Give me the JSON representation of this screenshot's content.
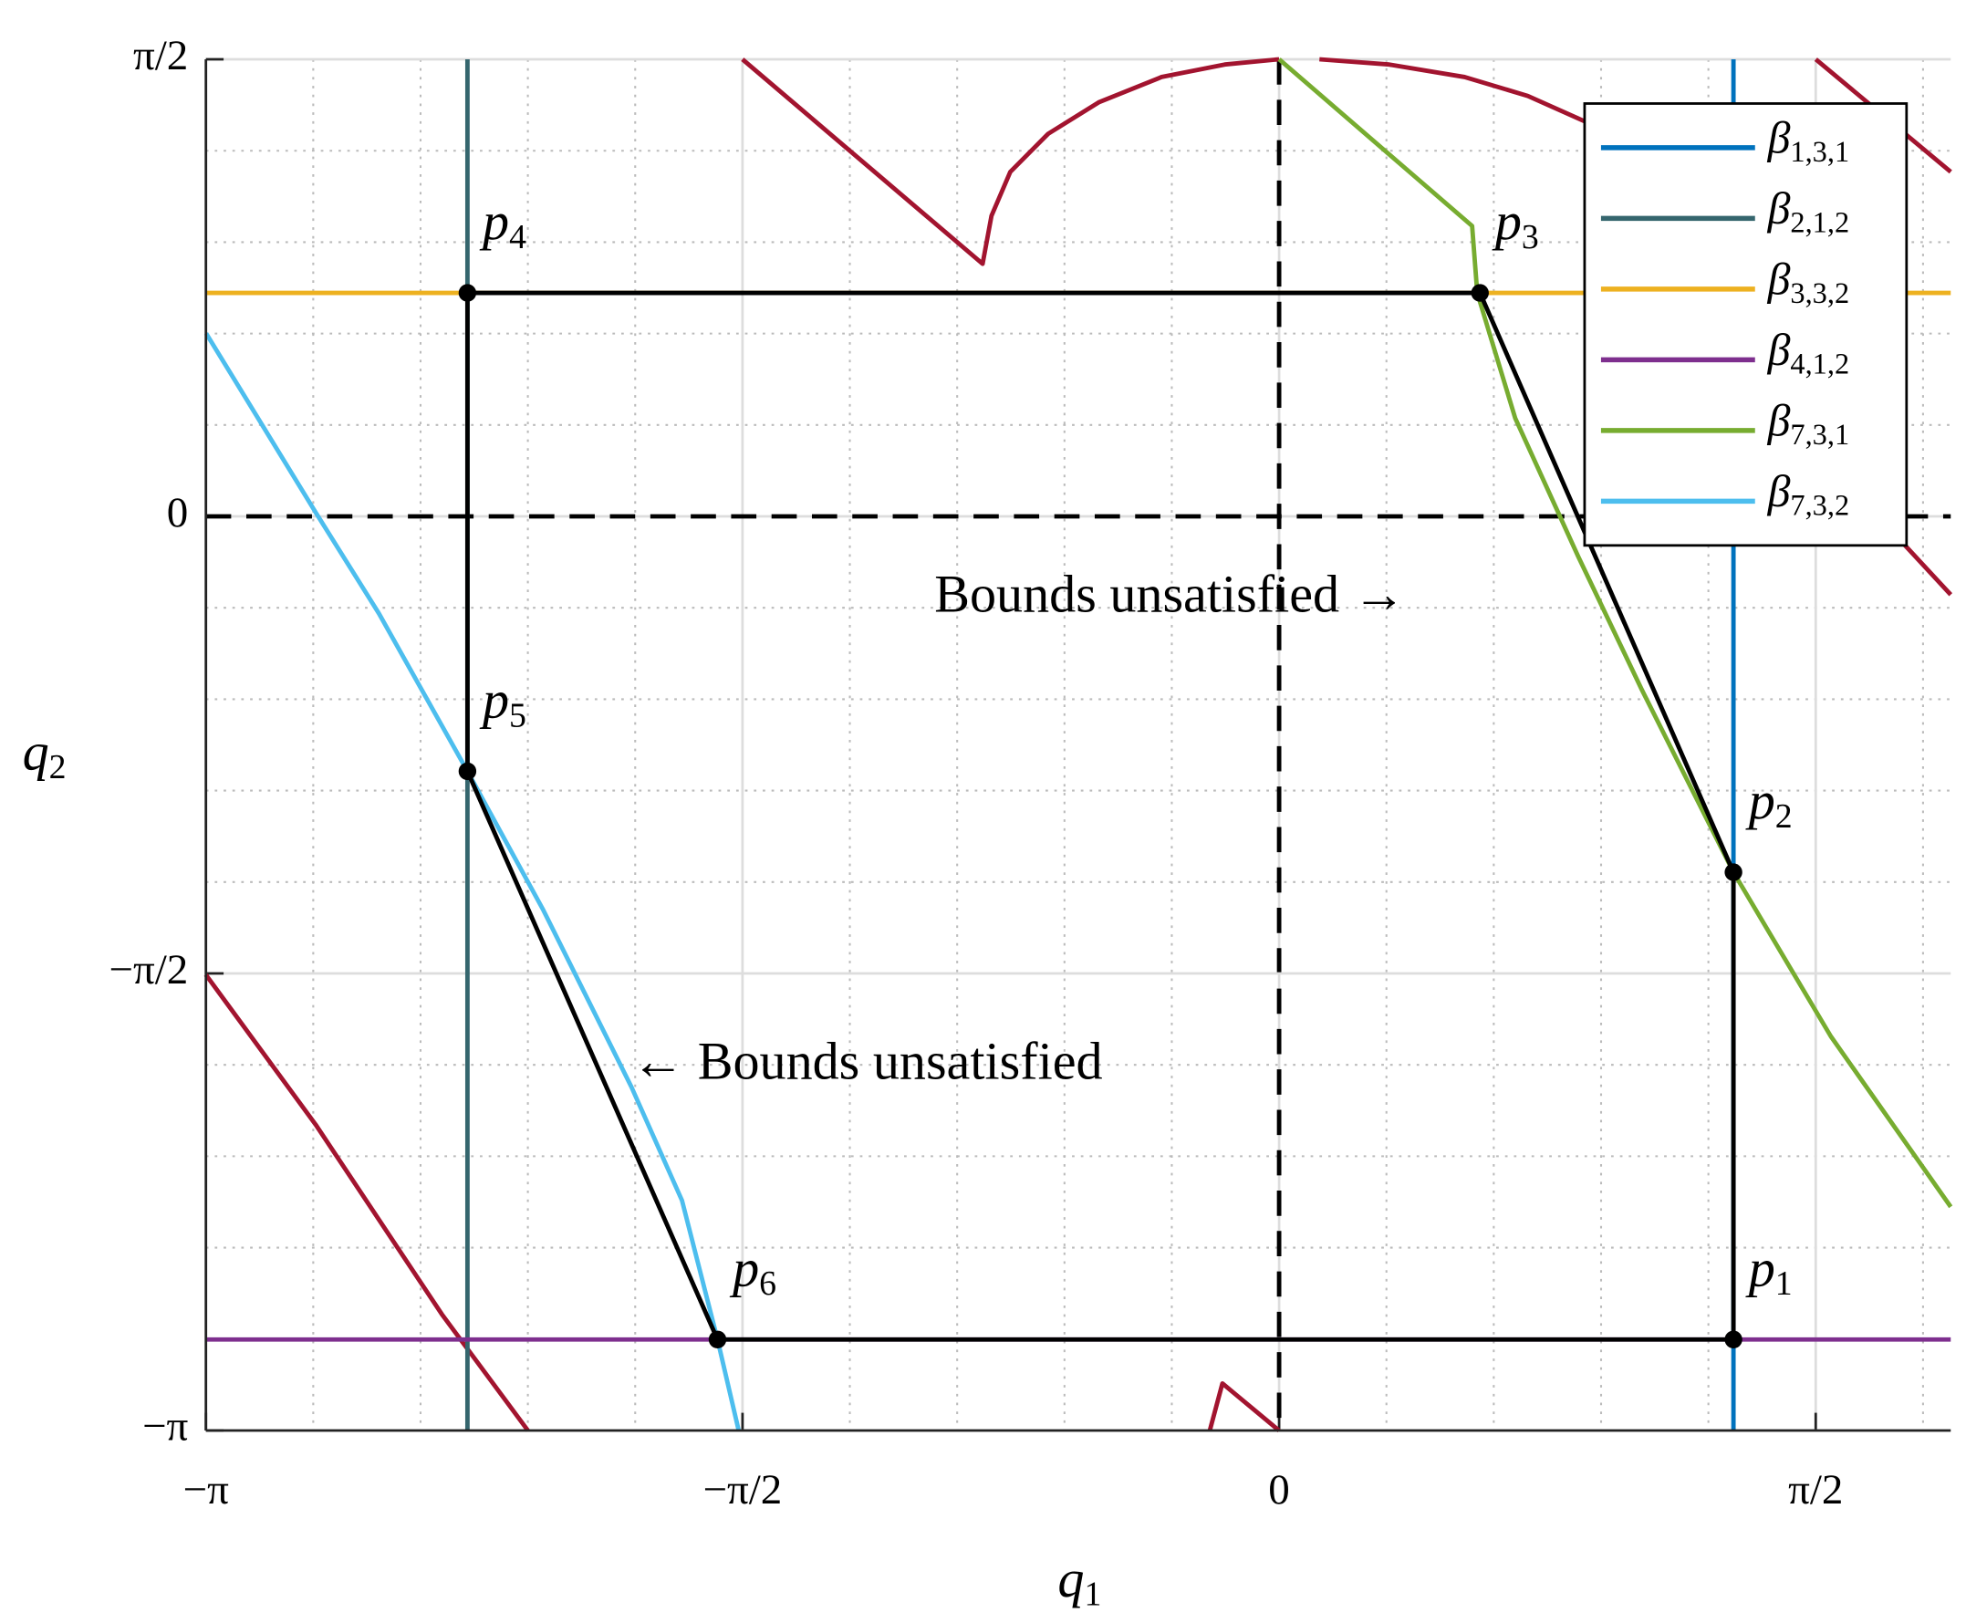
{
  "chart_data": {
    "type": "line",
    "xlabel": "q1",
    "ylabel": "q2",
    "xlim": [
      -3.1416,
      1.966
    ],
    "ylim": [
      -3.1416,
      1.5708
    ],
    "xticks": [
      {
        "value": -3.1416,
        "label": "−π"
      },
      {
        "value": -1.5708,
        "label": "−π/2"
      },
      0,
      {
        "value": 1.5708,
        "label": "π/2"
      }
    ],
    "yticks": [
      {
        "value": -3.1416,
        "label": "−π"
      },
      {
        "value": -1.5708,
        "label": "−π/2"
      },
      0,
      {
        "value": 1.5708,
        "label": "π/2"
      }
    ],
    "grid": true,
    "minor_grid": true,
    "zero_lines": true,
    "legend": "northeast",
    "series": [
      {
        "color": "#a2142f",
        "x": [
          -1.571,
          -0.868,
          -0.842,
          -0.787,
          -0.676,
          -0.528,
          -0.344,
          -0.159,
          0,
          null,
          0.118,
          0.322,
          0.543,
          0.728,
          0.894,
          null,
          1.571,
          1.966,
          null,
          1.726,
          1.966,
          null,
          -3.142,
          -2.82,
          -2.451,
          -2.199,
          null,
          -0.203,
          -0.166,
          0
        ],
        "values": [
          1.571,
          0.868,
          1.033,
          1.184,
          1.315,
          1.423,
          1.51,
          1.553,
          1.571,
          null,
          1.571,
          1.553,
          1.51,
          1.445,
          1.358,
          null,
          1.571,
          1.184,
          null,
          0.035,
          -0.269,
          null,
          -1.575,
          -2.091,
          -2.742,
          -3.142,
          null,
          -3.142,
          -2.98,
          -3.142
        ]
      },
      {
        "name": "β1,3,1",
        "color": "#0072bd",
        "x": [
          1.33,
          1.33
        ],
        "values": [
          -3.142,
          1.571
        ]
      },
      {
        "name": "β2,1,2",
        "color": "#35666e",
        "x": [
          -2.376,
          -2.376
        ],
        "values": [
          -3.142,
          1.571
        ]
      },
      {
        "name": "β3,3,2",
        "color": "#edb120",
        "x": [
          -3.142,
          1.966
        ],
        "values": [
          0.768,
          0.768
        ]
      },
      {
        "name": "β4,1,2",
        "color": "#7e2f8e",
        "x": [
          -3.142,
          1.966
        ],
        "values": [
          -2.829,
          -2.829
        ]
      },
      {
        "name": "β7,3,1",
        "color": "#77ac30",
        "x": [
          0,
          0.565,
          0.58,
          0.691,
          0.876,
          1.061,
          1.33,
          1.615,
          1.966
        ],
        "values": [
          1.571,
          0.998,
          0.768,
          0.338,
          -0.139,
          -0.594,
          -1.223,
          -1.787,
          -2.373
        ]
      },
      {
        "name": "β7,3,2",
        "color": "#4dbeee",
        "x": [
          -3.141,
          -2.82,
          -2.635,
          -2.376,
          -2.154,
          -1.896,
          -1.748,
          -1.644,
          -1.582
        ],
        "values": [
          0.629,
          0.013,
          -0.334,
          -0.876,
          -1.353,
          -1.961,
          -2.351,
          -2.829,
          -3.142
        ]
      },
      {
        "color": "#000000",
        "x": [
          1.33,
          1.33,
          0.588,
          -2.376,
          -2.376,
          -1.644,
          1.33
        ],
        "values": [
          -2.829,
          -1.223,
          0.768,
          0.768,
          -0.876,
          -2.829,
          -2.829
        ]
      }
    ],
    "points": [
      {
        "label": "p1",
        "x": 1.33,
        "y": -2.829
      },
      {
        "label": "p2",
        "x": 1.33,
        "y": -1.223
      },
      {
        "label": "p3",
        "x": 0.588,
        "y": 0.768
      },
      {
        "label": "p4",
        "x": -2.376,
        "y": 0.768
      },
      {
        "label": "p5",
        "x": -2.376,
        "y": -0.876
      },
      {
        "label": "p6",
        "x": -1.644,
        "y": -2.829
      }
    ],
    "annotations": [
      "Bounds unsatisfied →",
      "← Bounds unsatisfied"
    ]
  }
}
